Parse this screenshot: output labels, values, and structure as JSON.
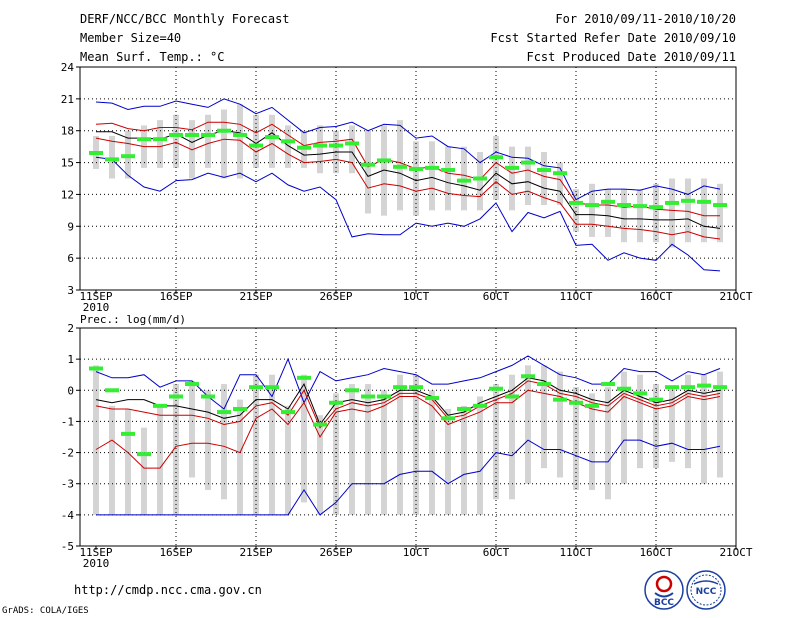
{
  "header": {
    "title": "DERF/NCC/BCC Monthly Forecast",
    "member_size": "Member Size=40",
    "variable": "Mean Surf. Temp.: °C",
    "period": "For 2010/09/11-2010/10/20",
    "start_refer": "Fcst Started Refer Date 2010/09/10",
    "produced": "Fcst Produced Date 2010/09/11"
  },
  "footer": {
    "url": "http://cmdp.ncc.cma.gov.cn",
    "grads": "GrADS: COLA/IGES"
  },
  "logos": {
    "bcc": "BCC",
    "ncc": "NCC"
  },
  "colors": {
    "box": "#d4d4d4",
    "mean": "#000000",
    "spread": "#cc0000",
    "extreme": "#0000cc",
    "obs": "#33ee33",
    "grid": "#000000"
  },
  "chart_data": [
    {
      "type": "box",
      "name": "temperature",
      "title": "Mean Surf. Temp.: °C",
      "ylim": [
        3,
        24
      ],
      "yticks": [
        3,
        6,
        9,
        12,
        15,
        18,
        21,
        24
      ],
      "xrange": [
        0,
        40
      ],
      "xticks": [
        {
          "x": 0,
          "label": "11SEP",
          "sub": "2010"
        },
        {
          "x": 5,
          "label": "16SEP"
        },
        {
          "x": 10,
          "label": "21SEP"
        },
        {
          "x": 15,
          "label": "26SEP"
        },
        {
          "x": 20,
          "label": "1OCT"
        },
        {
          "x": 25,
          "label": "6OCT"
        },
        {
          "x": 30,
          "label": "11OCT"
        },
        {
          "x": 35,
          "label": "16OCT"
        },
        {
          "x": 40,
          "label": "21OCT"
        }
      ],
      "box_low": [
        14.4,
        13.5,
        13.5,
        14.5,
        14.5,
        14.5,
        13.5,
        14.5,
        13.5,
        13.5,
        14.5,
        14.5,
        14.5,
        14.5,
        14.0,
        14.0,
        14.0,
        10.2,
        10.0,
        10.5,
        10.0,
        10.5,
        10.5,
        10.5,
        10.5,
        11.5,
        10.5,
        11.0,
        11.0,
        11.0,
        8.5,
        8.0,
        8.0,
        7.5,
        7.5,
        7.5,
        7.0,
        7.5,
        7.5,
        7.5
      ],
      "box_high": [
        17.5,
        17.5,
        18.0,
        18.5,
        19.0,
        19.5,
        19.0,
        19.5,
        20.0,
        20.5,
        19.5,
        19.5,
        18.5,
        18.0,
        18.5,
        18.0,
        18.5,
        18.0,
        18.5,
        19.0,
        17.0,
        17.0,
        16.5,
        16.5,
        16.0,
        17.5,
        16.5,
        16.5,
        16.0,
        15.0,
        12.5,
        13.0,
        12.5,
        12.5,
        12.5,
        13.0,
        13.5,
        13.5,
        13.5,
        13.0
      ],
      "max": [
        20.7,
        20.6,
        20.0,
        20.3,
        20.3,
        20.8,
        20.5,
        20.2,
        21.0,
        20.5,
        19.6,
        20.2,
        19.0,
        17.8,
        18.3,
        18.4,
        18.8,
        18.0,
        18.6,
        18.5,
        17.3,
        17.5,
        16.5,
        16.3,
        15.0,
        16.0,
        15.5,
        15.4,
        14.7,
        14.5,
        11.5,
        12.3,
        12.5,
        12.5,
        12.4,
        12.8,
        12.5,
        12.0,
        12.8,
        12.5
      ],
      "spread_high": [
        18.6,
        18.7,
        18.2,
        18.0,
        18.3,
        18.3,
        18.1,
        18.8,
        18.8,
        18.6,
        17.8,
        18.6,
        17.6,
        16.6,
        16.9,
        17.0,
        17.2,
        14.6,
        15.3,
        15.0,
        14.4,
        14.6,
        14.0,
        13.8,
        13.4,
        15.0,
        14.0,
        14.3,
        13.7,
        13.4,
        11.2,
        11.0,
        11.0,
        10.8,
        10.9,
        10.6,
        10.5,
        10.4,
        10.0,
        10.0
      ],
      "mean": [
        17.9,
        17.9,
        17.3,
        17.3,
        17.2,
        17.7,
        16.9,
        17.6,
        18.0,
        17.8,
        16.8,
        17.8,
        16.6,
        15.7,
        15.8,
        16.0,
        16.0,
        13.7,
        14.3,
        14.0,
        13.3,
        13.6,
        13.1,
        12.8,
        12.4,
        14.0,
        13.0,
        13.2,
        12.6,
        12.3,
        10.1,
        10.1,
        10.0,
        9.7,
        9.7,
        9.6,
        9.6,
        9.7,
        9.0,
        8.8
      ],
      "spread_low": [
        17.3,
        17.0,
        16.8,
        16.5,
        16.5,
        16.9,
        16.2,
        16.8,
        17.2,
        17.1,
        16.0,
        16.8,
        15.8,
        15.0,
        15.1,
        15.3,
        15.0,
        12.6,
        13.0,
        12.8,
        12.3,
        12.6,
        12.1,
        11.9,
        11.8,
        13.2,
        12.0,
        12.3,
        11.7,
        11.2,
        9.2,
        9.2,
        9.0,
        8.8,
        8.7,
        8.5,
        8.2,
        8.5,
        8.0,
        7.8
      ],
      "min": [
        15.5,
        15.3,
        13.8,
        12.7,
        12.3,
        13.3,
        13.4,
        14.0,
        13.6,
        14.0,
        13.2,
        14.0,
        12.9,
        12.3,
        12.7,
        11.5,
        8.0,
        8.3,
        8.2,
        8.2,
        9.3,
        9.0,
        9.3,
        9.0,
        9.7,
        11.2,
        8.5,
        10.3,
        9.8,
        10.4,
        7.2,
        7.3,
        5.8,
        6.5,
        6.0,
        5.8,
        7.3,
        6.3,
        4.9,
        4.8
      ],
      "obs": [
        [
          0,
          15.9
        ],
        [
          1,
          15.3
        ],
        [
          2,
          15.6
        ],
        [
          3,
          17.2
        ],
        [
          4,
          17.2
        ],
        [
          5,
          17.6
        ],
        [
          6,
          17.6
        ],
        [
          7,
          17.6
        ],
        [
          8,
          18.0
        ],
        [
          9,
          17.6
        ],
        [
          10,
          16.6
        ],
        [
          11,
          17.4
        ],
        [
          12,
          17.0
        ],
        [
          13,
          16.4
        ],
        [
          14,
          16.6
        ],
        [
          15,
          16.6
        ],
        [
          16,
          16.8
        ],
        [
          17,
          14.8
        ],
        [
          18,
          15.2
        ],
        [
          19,
          14.6
        ],
        [
          20,
          14.4
        ],
        [
          21,
          14.5
        ],
        [
          22,
          14.3
        ],
        [
          23,
          13.3
        ],
        [
          24,
          13.5
        ],
        [
          25,
          15.5
        ],
        [
          26,
          14.5
        ],
        [
          27,
          15.0
        ],
        [
          28,
          14.3
        ],
        [
          29,
          14.0
        ],
        [
          30,
          11.2
        ],
        [
          31,
          11.0
        ],
        [
          32,
          11.3
        ],
        [
          33,
          11.0
        ],
        [
          34,
          10.9
        ],
        [
          35,
          10.8
        ],
        [
          36,
          11.2
        ],
        [
          37,
          11.4
        ],
        [
          38,
          11.3
        ],
        [
          39,
          11.0
        ]
      ]
    },
    {
      "type": "box",
      "name": "precipitation",
      "title": "Prec.: log(mm/d)",
      "ylim": [
        -5,
        2
      ],
      "yticks": [
        -5,
        -4,
        -3,
        -2,
        -1,
        0,
        1,
        2
      ],
      "xrange": [
        0,
        40
      ],
      "xticks": [
        {
          "x": 0,
          "label": "11SEP",
          "sub": "2010"
        },
        {
          "x": 5,
          "label": "16SEP"
        },
        {
          "x": 10,
          "label": "21SEP"
        },
        {
          "x": 15,
          "label": "26SEP"
        },
        {
          "x": 20,
          "label": "1OCT"
        },
        {
          "x": 25,
          "label": "6OCT"
        },
        {
          "x": 30,
          "label": "11OCT"
        },
        {
          "x": 35,
          "label": "16OCT"
        },
        {
          "x": 40,
          "label": "21OCT"
        }
      ],
      "box_low": [
        -4,
        -4,
        -4,
        -4,
        -4,
        -4,
        -2.8,
        -3.2,
        -3.5,
        -4,
        -4,
        -4,
        -4,
        -3.6,
        -4,
        -4,
        -4,
        -4,
        -4,
        -4,
        -4,
        -4,
        -4,
        -4,
        -4,
        -3.5,
        -3.5,
        -3,
        -2.5,
        -2.8,
        -3.2,
        -3.2,
        -3.5,
        -3.0,
        -2.5,
        -2.5,
        -2.3,
        -2.5,
        -3.0,
        -2.8
      ],
      "box_high": [
        0.8,
        -0.5,
        -0.6,
        -1.2,
        -0.5,
        0.2,
        0.3,
        0.0,
        0.2,
        -0.3,
        0.5,
        0.5,
        -0.5,
        0.5,
        -0.8,
        -0.1,
        0.2,
        0.2,
        0.0,
        0.5,
        0.5,
        0.0,
        -0.6,
        -0.5,
        -0.2,
        0.2,
        0.5,
        0.8,
        0.8,
        0.6,
        0.1,
        -0.1,
        0.1,
        0.6,
        0.5,
        0.2,
        0.1,
        0.5,
        0.5,
        0.6
      ],
      "max": [
        0.6,
        0.4,
        0.4,
        0.5,
        0.1,
        0.3,
        0.3,
        -0.2,
        -0.6,
        0.5,
        0.5,
        -0.2,
        1.0,
        -0.4,
        0.6,
        0.3,
        0.4,
        0.5,
        0.7,
        0.6,
        0.5,
        0.2,
        0.2,
        0.3,
        0.4,
        0.6,
        0.8,
        1.1,
        0.8,
        0.5,
        0.4,
        0.2,
        0.2,
        0.7,
        0.6,
        0.6,
        0.3,
        0.6,
        0.5,
        0.7
      ],
      "mean": [
        -0.3,
        -0.4,
        -0.3,
        -0.3,
        -0.5,
        -0.5,
        -0.6,
        -0.7,
        -0.9,
        -0.8,
        -0.3,
        -0.3,
        -0.6,
        0.2,
        -1.1,
        -0.4,
        -0.3,
        -0.4,
        -0.3,
        0.0,
        0.0,
        -0.2,
        -0.8,
        -0.7,
        -0.4,
        -0.2,
        0.0,
        0.4,
        0.3,
        0.0,
        -0.1,
        -0.3,
        -0.4,
        0.0,
        -0.2,
        -0.4,
        -0.3,
        0.0,
        -0.1,
        0.0
      ],
      "spread_high": [
        -0.5,
        -0.6,
        -0.6,
        -0.7,
        -0.8,
        -0.8,
        -0.8,
        -0.9,
        -1.1,
        -1.0,
        -0.5,
        -0.4,
        -0.8,
        0.0,
        -1.2,
        -0.6,
        -0.4,
        -0.5,
        -0.4,
        -0.1,
        -0.1,
        -0.3,
        -0.9,
        -0.8,
        -0.5,
        -0.3,
        -0.1,
        0.3,
        0.2,
        -0.1,
        -0.2,
        -0.4,
        -0.5,
        -0.1,
        -0.3,
        -0.5,
        -0.4,
        -0.1,
        -0.2,
        -0.1
      ],
      "spread_low": [
        -1.9,
        -1.6,
        -2.0,
        -2.5,
        -2.5,
        -1.8,
        -1.7,
        -1.7,
        -1.8,
        -2.0,
        -0.9,
        -0.6,
        -1.1,
        -0.4,
        -1.5,
        -0.7,
        -0.6,
        -0.7,
        -0.5,
        -0.2,
        -0.2,
        -0.5,
        -1.1,
        -0.9,
        -0.7,
        -0.4,
        -0.4,
        0.0,
        -0.1,
        -0.2,
        -0.4,
        -0.6,
        -0.7,
        -0.2,
        -0.4,
        -0.6,
        -0.5,
        -0.2,
        -0.3,
        -0.2
      ],
      "min": [
        -4,
        -4,
        -4,
        -4,
        -4,
        -4,
        -4,
        -4,
        -4,
        -4,
        -4,
        -4,
        -4,
        -3.2,
        -4,
        -3.6,
        -3.0,
        -3.0,
        -3.0,
        -2.7,
        -2.6,
        -2.6,
        -3.0,
        -2.7,
        -2.6,
        -2.0,
        -2.1,
        -1.6,
        -1.9,
        -1.9,
        -2.1,
        -2.3,
        -2.3,
        -1.6,
        -1.6,
        -1.8,
        -1.7,
        -1.9,
        -1.9,
        -1.8
      ],
      "obs": [
        [
          0,
          0.7
        ],
        [
          1,
          0.0
        ],
        [
          2,
          -1.4
        ],
        [
          3,
          -2.05
        ],
        [
          4,
          -0.5
        ],
        [
          5,
          -0.2
        ],
        [
          6,
          0.2
        ],
        [
          7,
          -0.2
        ],
        [
          8,
          -0.7
        ],
        [
          9,
          -0.6
        ],
        [
          10,
          0.1
        ],
        [
          11,
          0.1
        ],
        [
          12,
          -0.7
        ],
        [
          13,
          0.4
        ],
        [
          14,
          -1.1
        ],
        [
          15,
          -0.4
        ],
        [
          16,
          0.0
        ],
        [
          17,
          -0.2
        ],
        [
          18,
          -0.2
        ],
        [
          19,
          0.1
        ],
        [
          20,
          0.1
        ],
        [
          21,
          -0.25
        ],
        [
          22,
          -0.9
        ],
        [
          23,
          -0.6
        ],
        [
          24,
          -0.5
        ],
        [
          25,
          0.05
        ],
        [
          26,
          -0.2
        ],
        [
          27,
          0.45
        ],
        [
          28,
          0.2
        ],
        [
          29,
          -0.3
        ],
        [
          30,
          -0.4
        ],
        [
          31,
          -0.5
        ],
        [
          32,
          0.2
        ],
        [
          33,
          0.05
        ],
        [
          34,
          -0.1
        ],
        [
          35,
          -0.3
        ],
        [
          36,
          0.1
        ],
        [
          37,
          0.1
        ],
        [
          38,
          0.15
        ],
        [
          39,
          0.1
        ]
      ]
    }
  ]
}
